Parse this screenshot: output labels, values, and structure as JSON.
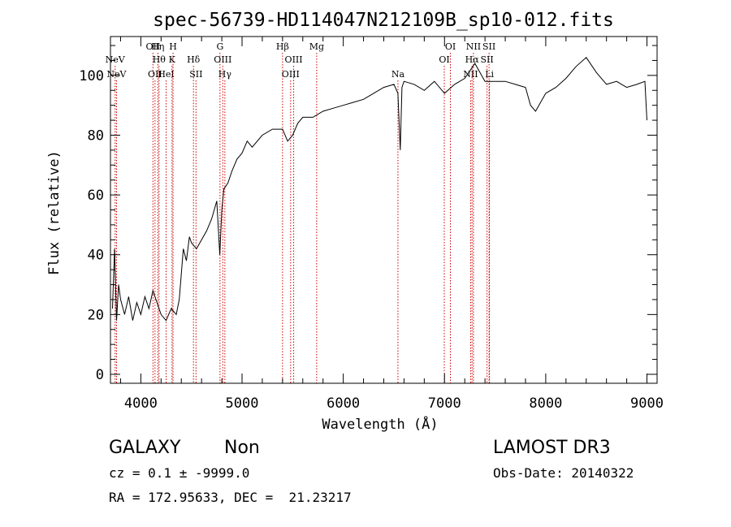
{
  "chart_data": {
    "type": "line",
    "title": "spec-56739-HD114047N212109B_sp10-012.fits",
    "xlabel": "Wavelength (Å)",
    "ylabel": "Flux (relative)",
    "xlim": [
      3700,
      9100
    ],
    "ylim": [
      -3,
      113
    ],
    "xticks": [
      4000,
      5000,
      6000,
      7000,
      8000,
      9000
    ],
    "yticks": [
      0,
      20,
      40,
      60,
      80,
      100
    ],
    "grid": false,
    "line_color": "#000000",
    "marker_color": "#cc0000",
    "series": [
      {
        "x": [
          3720,
          3740,
          3760,
          3780,
          3800,
          3840,
          3880,
          3920,
          3960,
          4000,
          4040,
          4080,
          4120,
          4160,
          4200,
          4250,
          4300,
          4350,
          4380,
          4420,
          4450,
          4480,
          4500,
          4550,
          4600,
          4650,
          4700,
          4750,
          4780,
          4800,
          4820,
          4860,
          4900,
          4950,
          5000,
          5050,
          5100,
          5200,
          5300,
          5400,
          5450,
          5500,
          5550,
          5600,
          5700,
          5800,
          5900,
          6000,
          6100,
          6200,
          6300,
          6400,
          6500,
          6540,
          6563,
          6580,
          6600,
          6700,
          6800,
          6900,
          7000,
          7100,
          7200,
          7300,
          7400,
          7500,
          7600,
          7700,
          7800,
          7850,
          7900,
          8000,
          8100,
          8200,
          8300,
          8400,
          8500,
          8600,
          8700,
          8800,
          8900,
          8980,
          9000
        ],
        "y": [
          22,
          42,
          18,
          30,
          25,
          20,
          26,
          18,
          24,
          20,
          26,
          22,
          28,
          24,
          20,
          18,
          22,
          20,
          25,
          42,
          38,
          46,
          44,
          42,
          45,
          48,
          52,
          58,
          40,
          55,
          62,
          64,
          68,
          72,
          74,
          78,
          76,
          80,
          82,
          82,
          78,
          80,
          84,
          86,
          86,
          88,
          89,
          90,
          91,
          92,
          94,
          96,
          97,
          94,
          75,
          96,
          98,
          97,
          95,
          98,
          94,
          97,
          99,
          104,
          98,
          98,
          98,
          97,
          96,
          90,
          88,
          94,
          96,
          99,
          103,
          106,
          101,
          97,
          98,
          96,
          97,
          98,
          85
        ]
      }
    ],
    "line_markers": [
      {
        "label": "NeV",
        "wavelength": 3746,
        "row": 2
      },
      {
        "label": "NeV",
        "wavelength": 3760,
        "row": 3
      },
      {
        "label": "OII",
        "wavelength": 4120,
        "row": 1
      },
      {
        "label": "OII",
        "wavelength": 4140,
        "row": 3
      },
      {
        "label": "Hη",
        "wavelength": 4168,
        "row": 1
      },
      {
        "label": "Hθ",
        "wavelength": 4180,
        "row": 2
      },
      {
        "label": "HeI",
        "wavelength": 4250,
        "row": 3
      },
      {
        "label": "H",
        "wavelength": 4318,
        "row": 1
      },
      {
        "label": "K",
        "wavelength": 4308,
        "row": 2
      },
      {
        "label": "Hδ",
        "wavelength": 4520,
        "row": 2
      },
      {
        "label": "SII",
        "wavelength": 4545,
        "row": 3
      },
      {
        "label": "G",
        "wavelength": 4782,
        "row": 1
      },
      {
        "label": "OIII",
        "wavelength": 4810,
        "row": 2
      },
      {
        "label": "Hγ",
        "wavelength": 4830,
        "row": 3
      },
      {
        "label": "Hβ",
        "wavelength": 5400,
        "row": 1
      },
      {
        "label": "OIII",
        "wavelength": 5510,
        "row": 2
      },
      {
        "label": "OIII",
        "wavelength": 5480,
        "row": 3
      },
      {
        "label": "Mg",
        "wavelength": 5737,
        "row": 1
      },
      {
        "label": "Na",
        "wavelength": 6540,
        "row": 3
      },
      {
        "label": "OI",
        "wavelength": 7058,
        "row": 1
      },
      {
        "label": "OI",
        "wavelength": 6998,
        "row": 2
      },
      {
        "label": "NII",
        "wavelength": 7286,
        "row": 1
      },
      {
        "label": "NII",
        "wavelength": 7258,
        "row": 3
      },
      {
        "label": "Hα",
        "wavelength": 7272,
        "row": 2
      },
      {
        "label": "SII",
        "wavelength": 7440,
        "row": 1
      },
      {
        "label": "SII",
        "wavelength": 7420,
        "row": 2
      },
      {
        "label": "Li",
        "wavelength": 7444,
        "row": 3
      }
    ]
  },
  "info": {
    "object_class": "GALAXY",
    "subclass": "Non",
    "survey": "LAMOST DR3",
    "redshift": "cz = 0.1 ± -9999.0",
    "obs_date": "Obs-Date: 20140322",
    "coords": "RA = 172.95633, DEC =  21.23217"
  }
}
